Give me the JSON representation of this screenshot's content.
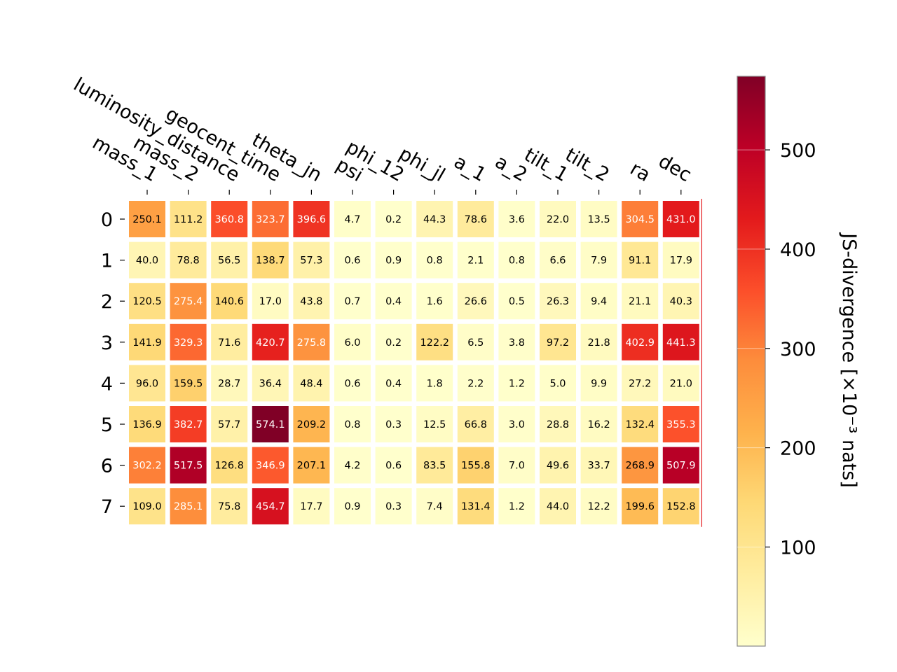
{
  "chart_data": {
    "type": "heatmap",
    "title": "",
    "columns": [
      "mass_1",
      "mass_2",
      "luminosity_distance",
      "geocent_time",
      "theta_jn",
      "psi",
      "phi_12",
      "phi_jl",
      "a_1",
      "a_2",
      "tilt_1",
      "tilt_2",
      "ra",
      "dec"
    ],
    "rows": [
      "0",
      "1",
      "2",
      "3",
      "4",
      "5",
      "6",
      "7"
    ],
    "values": [
      [
        250.1,
        111.2,
        360.8,
        323.7,
        396.6,
        4.7,
        0.2,
        44.3,
        78.6,
        3.6,
        22.0,
        13.5,
        304.5,
        431.0
      ],
      [
        40.0,
        78.8,
        56.5,
        138.7,
        57.3,
        0.6,
        0.9,
        0.8,
        2.1,
        0.8,
        6.6,
        7.9,
        91.1,
        17.9
      ],
      [
        120.5,
        275.4,
        140.6,
        17.0,
        43.8,
        0.7,
        0.4,
        1.6,
        26.6,
        0.5,
        26.3,
        9.4,
        21.1,
        40.3
      ],
      [
        141.9,
        329.3,
        71.6,
        420.7,
        275.8,
        6.0,
        0.2,
        122.2,
        6.5,
        3.8,
        97.2,
        21.8,
        402.9,
        441.3
      ],
      [
        96.0,
        159.5,
        28.7,
        36.4,
        48.4,
        0.6,
        0.4,
        1.8,
        2.2,
        1.2,
        5.0,
        9.9,
        27.2,
        21.0
      ],
      [
        136.9,
        382.7,
        57.7,
        574.1,
        209.2,
        0.8,
        0.3,
        12.5,
        66.8,
        3.0,
        28.8,
        16.2,
        132.4,
        355.3
      ],
      [
        302.2,
        517.5,
        126.8,
        346.9,
        207.1,
        4.2,
        0.6,
        83.5,
        155.8,
        7.0,
        49.6,
        33.7,
        268.9,
        507.9
      ],
      [
        109.0,
        285.1,
        75.8,
        454.7,
        17.7,
        0.9,
        0.3,
        7.4,
        131.4,
        1.2,
        44.0,
        12.2,
        199.6,
        152.8
      ]
    ],
    "colormap": "YlOrRd",
    "vmin": 0.2,
    "vmax": 574.1,
    "colorbar": {
      "label": "JS-divergence [×10⁻³ nats]",
      "ticks": [
        100,
        200,
        300,
        400,
        500
      ]
    }
  }
}
